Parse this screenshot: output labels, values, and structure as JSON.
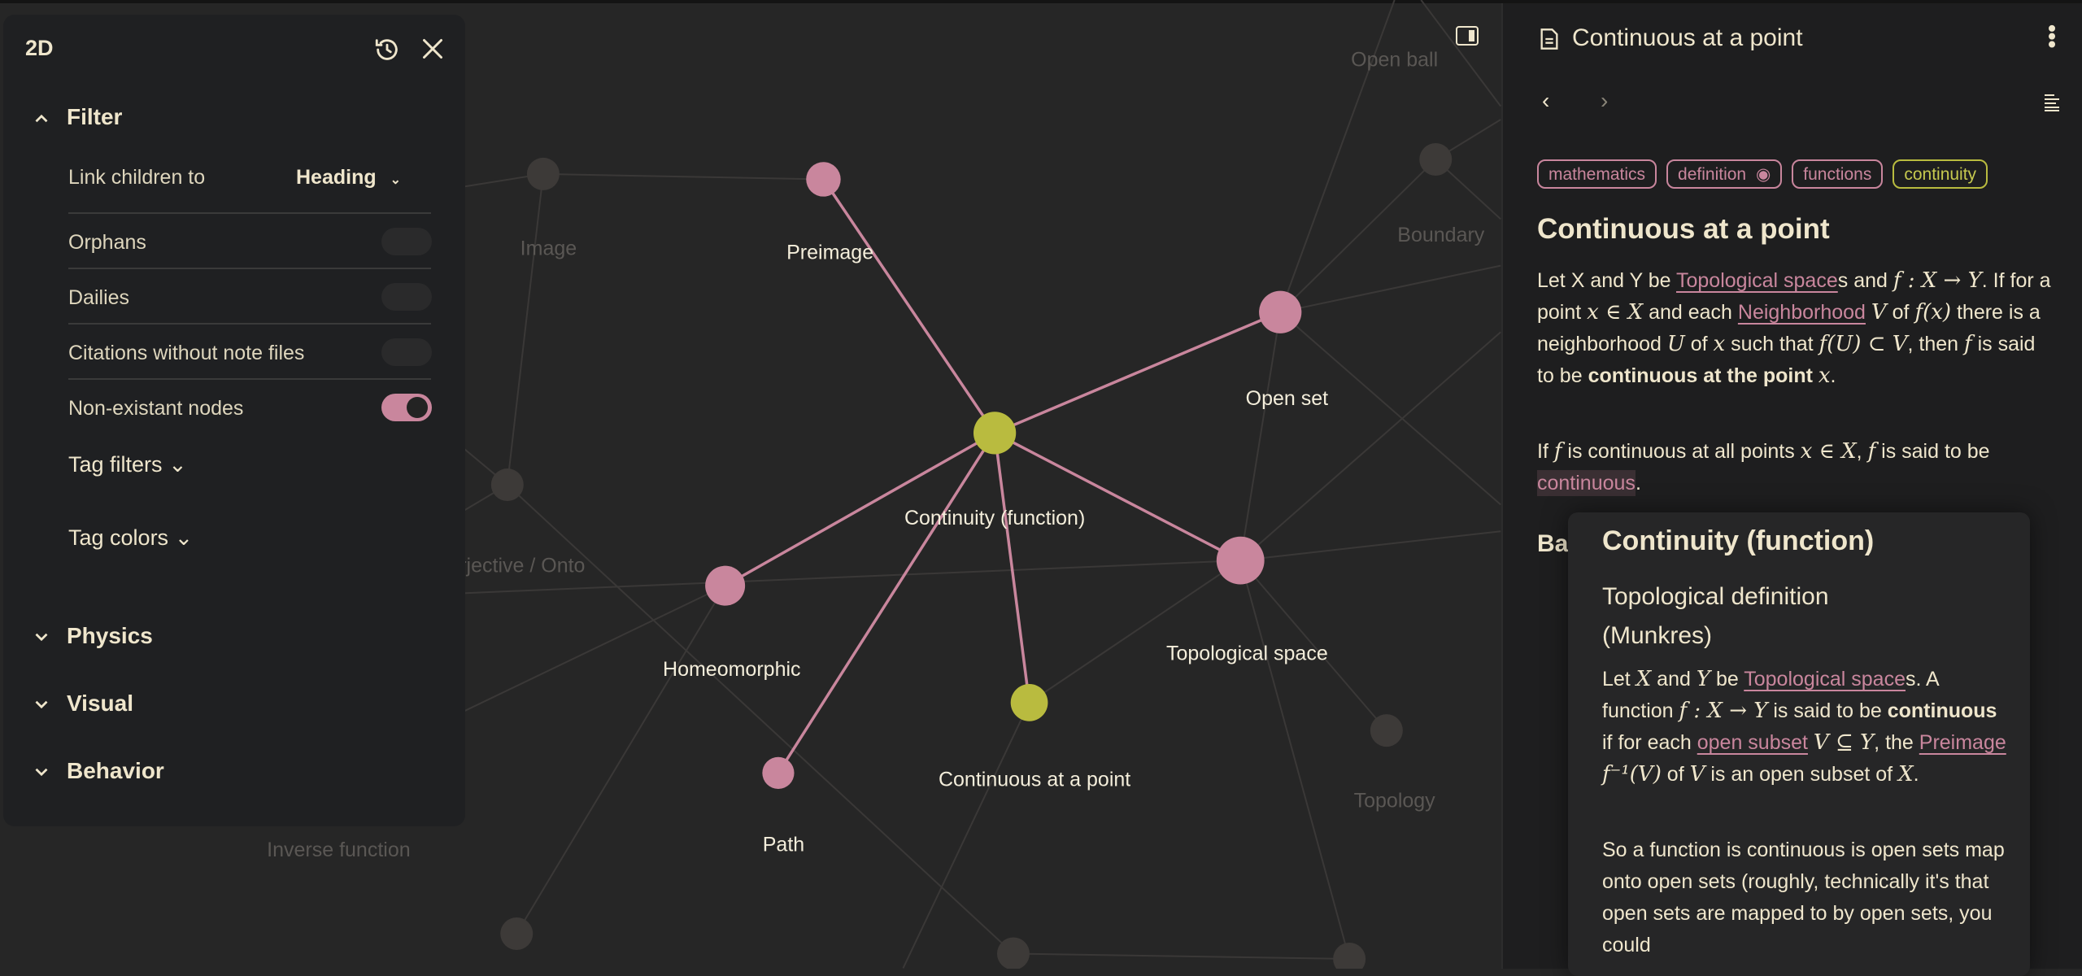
{
  "graph": {
    "colors": {
      "tag_pink": "#c9869d",
      "tag_yellow": "#b9bb3f",
      "faded_node": "#3d3a38",
      "faded_edge": "#3a3837",
      "active_edge": "#c9869d"
    },
    "active_nodes": [
      {
        "id": "continuity",
        "label": "Continuity (function)",
        "color": "yellow"
      },
      {
        "id": "preimage",
        "label": "Preimage",
        "color": "pink"
      },
      {
        "id": "openset",
        "label": "Open set",
        "color": "pink"
      },
      {
        "id": "topspace",
        "label": "Topological space",
        "color": "pink"
      },
      {
        "id": "contpoint",
        "label": "Continuous at a point",
        "color": "yellow"
      },
      {
        "id": "homeo",
        "label": "Homeomorphic",
        "color": "pink"
      },
      {
        "id": "path",
        "label": "Path",
        "color": "pink"
      }
    ],
    "faded_labels": [
      "Image",
      "Surjective / Onto",
      "Inverse function",
      "Open ball",
      "Boundary",
      "Topology"
    ]
  },
  "panel": {
    "mode": "2D",
    "icons": {
      "reset": "history-icon",
      "close": "close-icon"
    },
    "filter": {
      "title": "Filter",
      "link_children_label": "Link children to",
      "link_children_value": "Heading",
      "orphans": {
        "label": "Orphans",
        "on": false
      },
      "dailies": {
        "label": "Dailies",
        "on": false
      },
      "citations": {
        "label": "Citations without note files",
        "on": false
      },
      "nonexistent": {
        "label": "Non-existant nodes",
        "on": true
      },
      "tag_filters": "Tag filters",
      "tag_colors": "Tag colors"
    },
    "physics": "Physics",
    "visual": "Visual",
    "behavior": "Behavior"
  },
  "sidebar": {
    "title": "Continuous at a point",
    "tags": [
      {
        "label": "mathematics",
        "color": "pink"
      },
      {
        "label": "definition",
        "color": "pink",
        "icon": "eye-icon"
      },
      {
        "label": "functions",
        "color": "pink"
      },
      {
        "label": "continuity",
        "color": "yellow"
      }
    ],
    "heading": "Continuous at a point",
    "paragraphs": [
      [
        {
          "t": "Let X and Y be "
        },
        {
          "t": "Topological space",
          "k": "link"
        },
        {
          "t": "s and "
        },
        {
          "t": "f : X → Y",
          "k": "math"
        },
        {
          "t": ". If for a point "
        },
        {
          "t": "x ∈ X",
          "k": "math"
        },
        {
          "t": " and each "
        },
        {
          "t": "Neighborhood",
          "k": "link"
        },
        {
          "t": " "
        },
        {
          "t": "V",
          "k": "math"
        },
        {
          "t": " of "
        },
        {
          "t": "f(x)",
          "k": "math"
        },
        {
          "t": " there is a neighborhood "
        },
        {
          "t": "U",
          "k": "math"
        },
        {
          "t": " of "
        },
        {
          "t": "x",
          "k": "math"
        },
        {
          "t": " such that "
        },
        {
          "t": "f(U) ⊂ V",
          "k": "math"
        },
        {
          "t": ", then "
        },
        {
          "t": "f",
          "k": "math"
        },
        {
          "t": " is said to be "
        },
        {
          "t": "continuous at the point",
          "k": "bold"
        },
        {
          "t": " "
        },
        {
          "t": "x",
          "k": "math"
        },
        {
          "t": "."
        }
      ],
      [
        {
          "t": "If "
        },
        {
          "t": "f",
          "k": "math"
        },
        {
          "t": " is continuous at all points "
        },
        {
          "t": "x ∈ X",
          "k": "math"
        },
        {
          "t": ", "
        },
        {
          "t": "f",
          "k": "math"
        },
        {
          "t": " is said to be "
        },
        {
          "t": "continuous",
          "k": "hl"
        },
        {
          "t": "."
        }
      ]
    ],
    "hidden_heading_fragment": "Ba"
  },
  "popover": {
    "title": "Continuity (function)",
    "subtitle": "Topological definition (Munkres)",
    "paragraphs": [
      [
        {
          "t": "Let "
        },
        {
          "t": "X",
          "k": "math"
        },
        {
          "t": " and "
        },
        {
          "t": "Y",
          "k": "math"
        },
        {
          "t": " be "
        },
        {
          "t": "Topological space",
          "k": "link"
        },
        {
          "t": "s. A function "
        },
        {
          "t": "f : X → Y",
          "k": "math"
        },
        {
          "t": " is said to be "
        },
        {
          "t": "continuous",
          "k": "bold"
        },
        {
          "t": " if for each "
        },
        {
          "t": "open subset",
          "k": "link"
        },
        {
          "t": " "
        },
        {
          "t": "V ⊆ Y",
          "k": "math"
        },
        {
          "t": ", the "
        },
        {
          "t": "Preimage",
          "k": "link"
        },
        {
          "t": " "
        },
        {
          "t": "f⁻¹(V)",
          "k": "math"
        },
        {
          "t": " of "
        },
        {
          "t": "V",
          "k": "math"
        },
        {
          "t": " is an open subset of "
        },
        {
          "t": "X",
          "k": "math"
        },
        {
          "t": "."
        }
      ],
      [
        {
          "t": "So a function is continuous is open sets map onto open sets (roughly, technically it's that open sets are mapped to by open sets, you could"
        }
      ]
    ]
  }
}
